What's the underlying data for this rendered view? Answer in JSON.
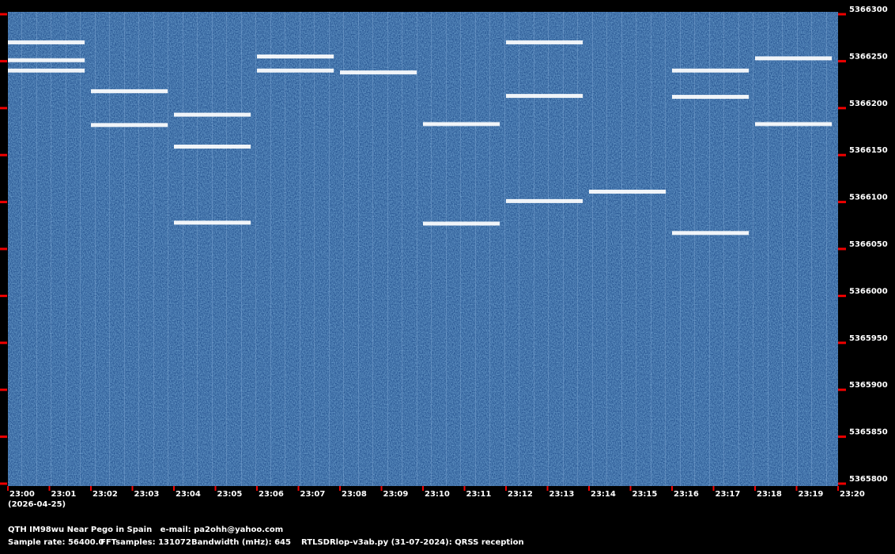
{
  "chart_data": {
    "type": "waterfall",
    "xlim": [
      "23:00",
      "23:20"
    ],
    "xticks": [
      "23:00",
      "23:01",
      "23:02",
      "23:03",
      "23:04",
      "23:05",
      "23:06",
      "23:07",
      "23:08",
      "23:09",
      "23:10",
      "23:11",
      "23:12",
      "23:13",
      "23:14",
      "23:15",
      "23:16",
      "23:17",
      "23:18",
      "23:19",
      "23:20"
    ],
    "ylim": [
      5365800,
      5366300
    ],
    "yticks": [
      5365800,
      5365850,
      5365900,
      5365950,
      5366000,
      5366050,
      5366100,
      5366150,
      5366200,
      5366250,
      5366300
    ],
    "date": "(2026-04-25)",
    "color": "#ffffff",
    "signals": [
      {
        "start": "23:00",
        "freq": 5366270
      },
      {
        "start": "23:00",
        "freq": 5366251
      },
      {
        "start": "23:00",
        "freq": 5366240
      },
      {
        "start": "23:02",
        "freq": 5366218
      },
      {
        "start": "23:02",
        "freq": 5366182
      },
      {
        "start": "23:04",
        "freq": 5366193
      },
      {
        "start": "23:04",
        "freq": 5366159
      },
      {
        "start": "23:04",
        "freq": 5366078
      },
      {
        "start": "23:06",
        "freq": 5366255
      },
      {
        "start": "23:06",
        "freq": 5366240
      },
      {
        "start": "23:08",
        "freq": 5366238
      },
      {
        "start": "23:10",
        "freq": 5366183
      },
      {
        "start": "23:10",
        "freq": 5366077
      },
      {
        "start": "23:12",
        "freq": 5366270
      },
      {
        "start": "23:12",
        "freq": 5366213
      },
      {
        "start": "23:12",
        "freq": 5366101
      },
      {
        "start": "23:14",
        "freq": 5366111
      },
      {
        "start": "23:16",
        "freq": 5366240
      },
      {
        "start": "23:16",
        "freq": 5366212
      },
      {
        "start": "23:16",
        "freq": 5366067
      },
      {
        "start": "23:18",
        "freq": 5366253
      },
      {
        "start": "23:18",
        "freq": 5366183
      }
    ]
  },
  "footer": {
    "qth": "QTH IM98wu Near Pego in Spain   e-mail: pa2ohh@yahoo.com",
    "sample_rate": "Sample rate: 56400.0",
    "fft_samples": "FFTsamples: 131072",
    "bandwidth": "Bandwidth (mHz): 645",
    "program": "RTLSDRlop-v3ab.py (31-07-2024): QRSS reception"
  }
}
